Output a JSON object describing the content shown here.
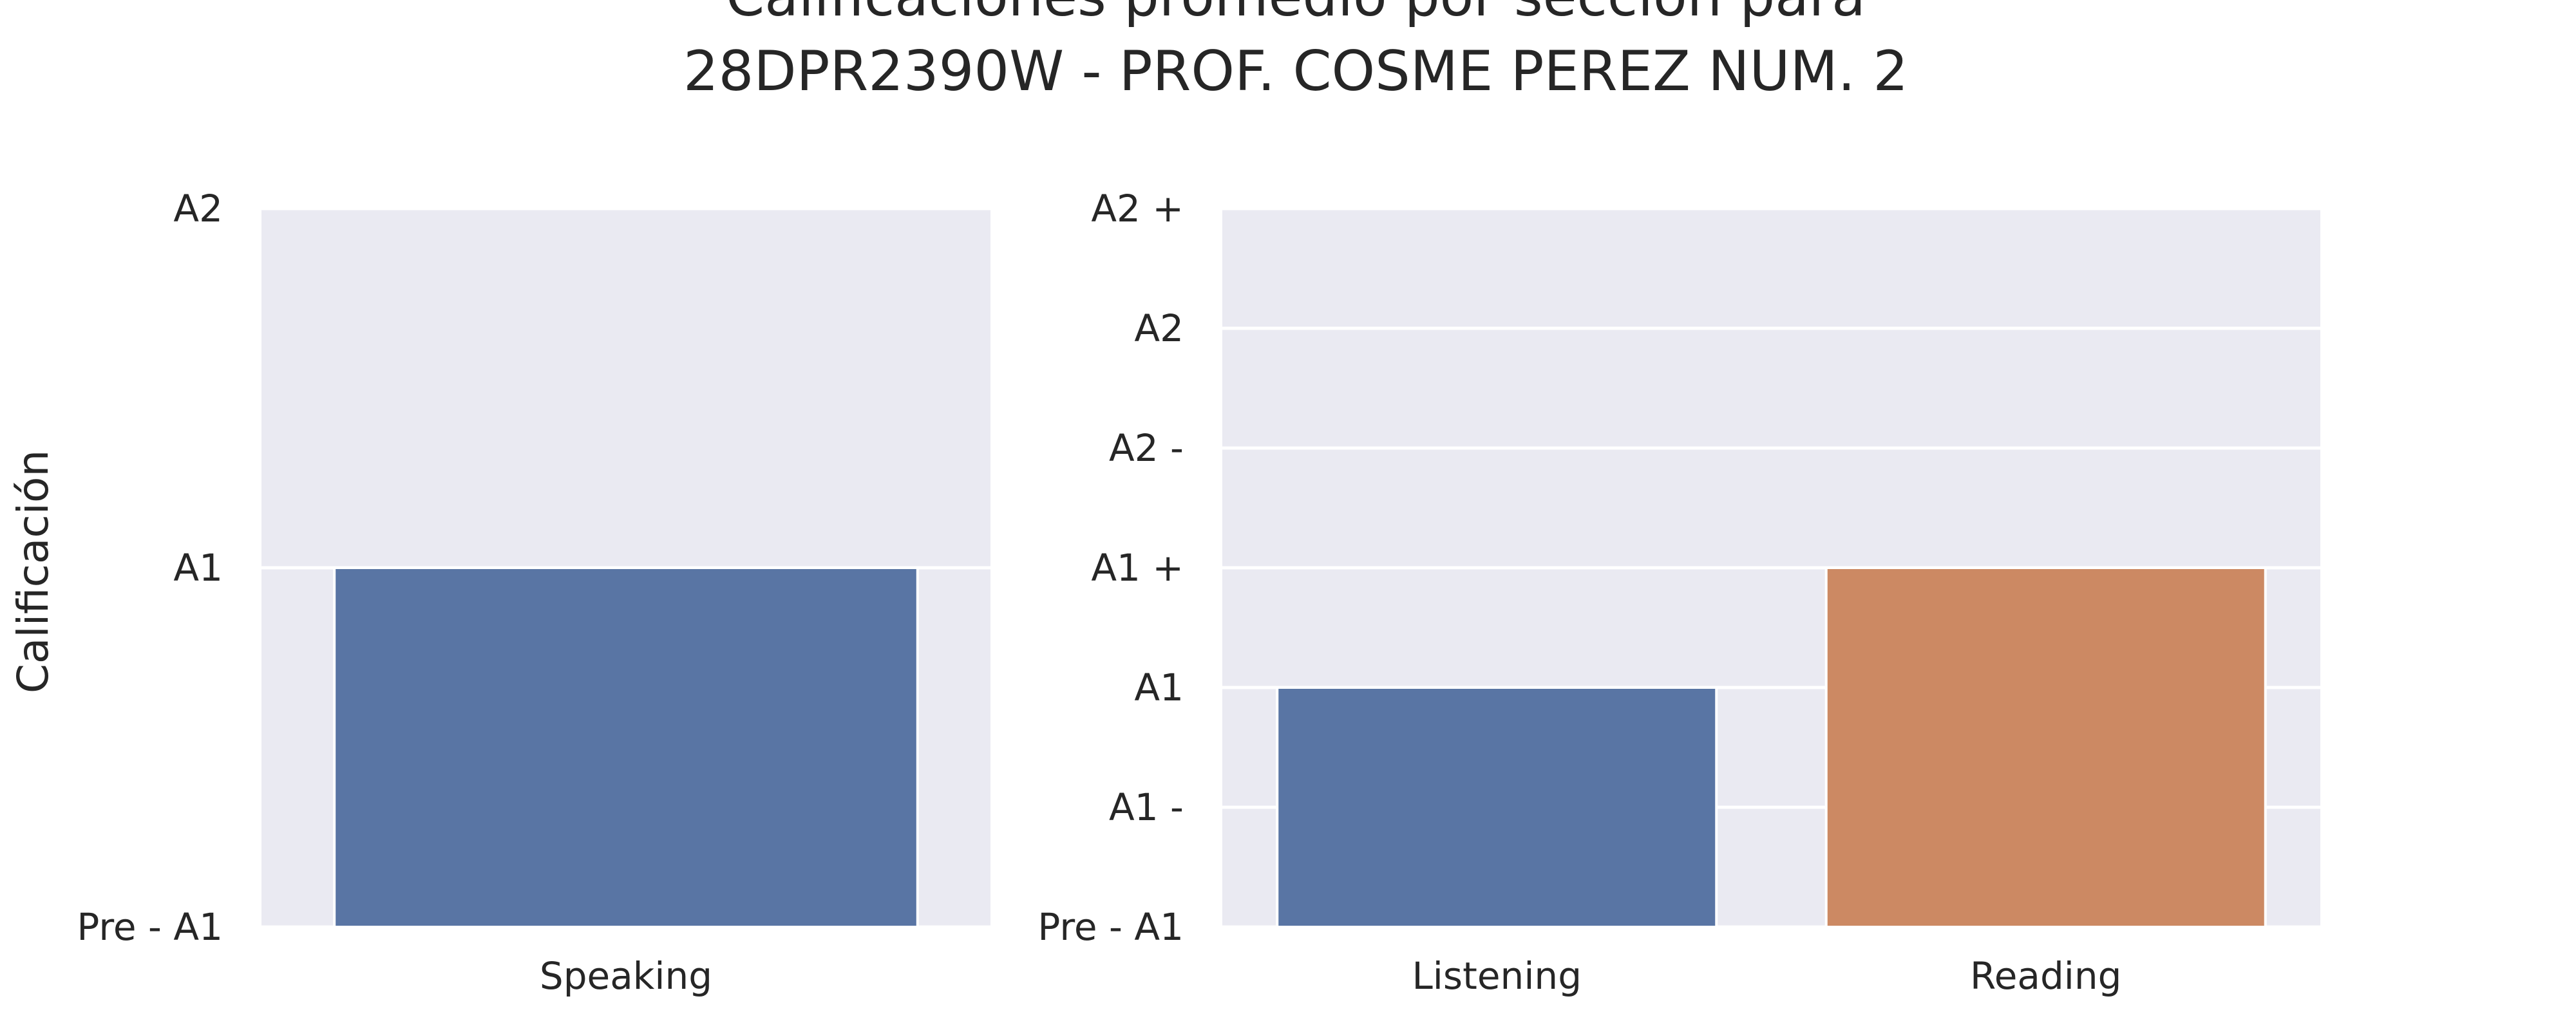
{
  "chart_data": {
    "title": [
      "Calificaciones promedio por sección para",
      "28DPR2390W - PROF. COSME PEREZ NUM. 2"
    ],
    "ylabel": "Calificación",
    "background_color": "#eaeaf2",
    "grid_color": "#ffffff",
    "panels": [
      {
        "type": "bar",
        "categories": [
          "Speaking"
        ],
        "values": [
          1
        ],
        "colors": [
          "#5975a4"
        ],
        "y_ticks": [
          "Pre - A1",
          "A1",
          "A2"
        ],
        "ylim": [
          0,
          2
        ],
        "grid": true
      },
      {
        "type": "bar",
        "categories": [
          "Listening",
          "Reading"
        ],
        "values": [
          2,
          3
        ],
        "colors": [
          "#5975a4",
          "#cc8963"
        ],
        "y_ticks": [
          "Pre - A1",
          "A1 -",
          "A1",
          "A1 +",
          "A2 -",
          "A2",
          "A2 +"
        ],
        "ylim": [
          0,
          6
        ],
        "grid": true
      }
    ]
  }
}
